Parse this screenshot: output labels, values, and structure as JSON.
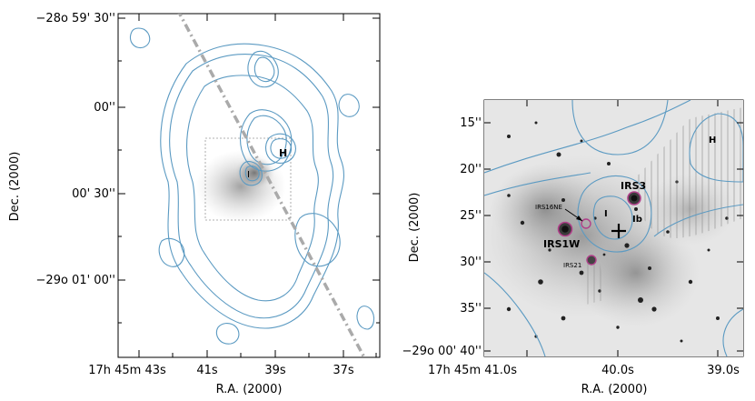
{
  "left_panel": {
    "xlabel": "R.A. (2000)",
    "ylabel": "Dec. (2000)",
    "x_ticks": [
      "17h 45m 43s",
      "41s",
      "39s",
      "37s"
    ],
    "y_ticks": [
      "−28o 59' 30''",
      "00''",
      "00' 30''",
      "−29o 01' 00''"
    ],
    "labels": {
      "I": "I",
      "H": "H"
    },
    "colors": {
      "contour": "#5b9ac2",
      "line": "#aaaaaa",
      "box": "#999999"
    }
  },
  "right_panel": {
    "xlabel": "R.A. (2000)",
    "ylabel": "Dec. (2000)",
    "x_ticks": [
      "17h 45m 41.0s",
      "40.0s",
      "39.0s"
    ],
    "y_ticks": [
      "15''",
      "20''",
      "25''",
      "30''",
      "35''",
      "−29o 00' 40''"
    ],
    "sources": {
      "irs3": "IRS3",
      "irs16ne": "IRS16NE",
      "irs1w": "IRS1W",
      "irs21": "IRS21",
      "i": "I",
      "ib": "Ib",
      "h": "H"
    },
    "colors": {
      "contour": "#5b9ac2",
      "source_ring": "#b0408a",
      "hatch": "#888888"
    }
  }
}
